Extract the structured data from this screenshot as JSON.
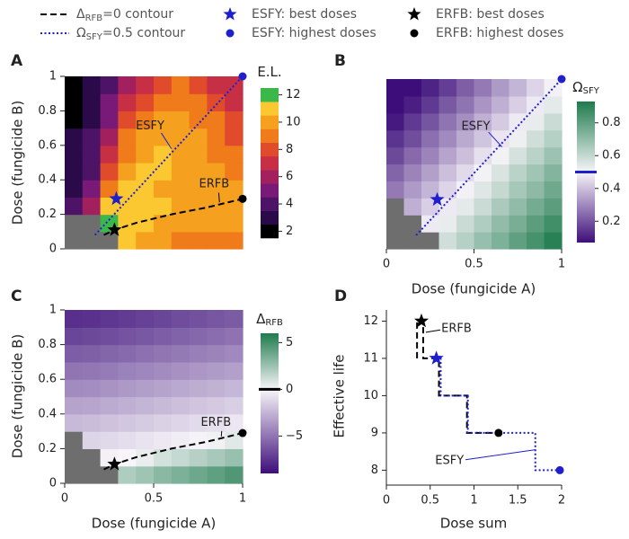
{
  "legend": [
    {
      "label": "Δ",
      "sub": "RFB",
      "label_end": "=0 contour",
      "symbol": "dashed",
      "color": "#000000"
    },
    {
      "label": "ESFY: best doses",
      "symbol": "star",
      "color": "#1f1fcc"
    },
    {
      "label": "ERFB: best doses",
      "symbol": "star",
      "color": "#000000"
    },
    {
      "label": "Ω",
      "sub": "SFY",
      "label_end": "=0.5 contour",
      "symbol": "dotted",
      "color": "#1f1fcc"
    },
    {
      "label": "ESFY: highest doses",
      "symbol": "dot",
      "color": "#1f1fcc"
    },
    {
      "label": "ERFB: highest doses",
      "symbol": "dot",
      "color": "#000000"
    }
  ],
  "chart_data": [
    {
      "type": "heatmap",
      "panel": "A",
      "ylabel": "Dose (fungicide B)",
      "x": [
        0.05,
        0.15,
        0.25,
        0.35,
        0.45,
        0.55,
        0.65,
        0.75,
        0.85,
        0.95
      ],
      "y": [
        0.05,
        0.15,
        0.25,
        0.35,
        0.45,
        0.55,
        0.65,
        0.75,
        0.85,
        0.95
      ],
      "z": [
        [
          null,
          null,
          null,
          11,
          10,
          10,
          9,
          9,
          9,
          9
        ],
        [
          null,
          null,
          12,
          11,
          11,
          10,
          10,
          10,
          10,
          10
        ],
        [
          4,
          6,
          11,
          11,
          11,
          11,
          10,
          10,
          10,
          10
        ],
        [
          3,
          5,
          9,
          11,
          11,
          10,
          10,
          10,
          10,
          10
        ],
        [
          3,
          4,
          8,
          10,
          11,
          11,
          10,
          10,
          10,
          9
        ],
        [
          3,
          4,
          7,
          9,
          10,
          11,
          10,
          10,
          9,
          9
        ],
        [
          3,
          4,
          6,
          9,
          10,
          10,
          10,
          10,
          9,
          8
        ],
        [
          2,
          3,
          5,
          8,
          9,
          10,
          10,
          9,
          9,
          8
        ],
        [
          2,
          3,
          5,
          7,
          8,
          9,
          9,
          9,
          8,
          7
        ],
        [
          2,
          3,
          4,
          6,
          7,
          8,
          9,
          8,
          7,
          7
        ]
      ],
      "missing_color": "#6e6e6e",
      "xlim": [
        0,
        1
      ],
      "ylim": [
        0,
        1
      ],
      "yticks": [
        0,
        0.2,
        0.4,
        0.6,
        0.8,
        1
      ],
      "colorbar": {
        "label": "E.L.",
        "mode": "discrete",
        "zlim": [
          1.5,
          12.5
        ],
        "ticks": [
          2,
          4,
          6,
          8,
          10,
          12
        ],
        "colors": [
          "#000000",
          "#2b0a4a",
          "#4c1366",
          "#7a1a78",
          "#a3205f",
          "#c72f45",
          "#e04b2c",
          "#f07b1a",
          "#f5a01e",
          "#fbc832",
          "#3cb84a"
        ]
      },
      "lines": [
        {
          "style": "dotted",
          "color": "#1f1fcc",
          "x": [
            0.17,
            1
          ],
          "y": [
            0.08,
            1
          ]
        },
        {
          "style": "dashed",
          "color": "#000000",
          "x": [
            0.22,
            0.28,
            0.4,
            0.6,
            0.8,
            1
          ],
          "y": [
            0.08,
            0.11,
            0.15,
            0.2,
            0.24,
            0.29
          ]
        }
      ],
      "markers": [
        {
          "shape": "star",
          "color": "#1f1fcc",
          "x": 0.29,
          "y": 0.29
        },
        {
          "shape": "star",
          "color": "#000000",
          "x": 0.28,
          "y": 0.11
        },
        {
          "shape": "dot",
          "color": "#1f1fcc",
          "x": 1,
          "y": 1
        },
        {
          "shape": "dot",
          "color": "#000000",
          "x": 1,
          "y": 0.29
        }
      ],
      "annotations": [
        {
          "text": "ESFY",
          "color": "#1f1fcc"
        },
        {
          "text": "ERFB",
          "color": "#000000"
        }
      ]
    },
    {
      "type": "heatmap",
      "panel": "B",
      "xlabel": "Dose (fungicide A)",
      "x": [
        0.05,
        0.15,
        0.25,
        0.35,
        0.45,
        0.55,
        0.65,
        0.75,
        0.85,
        0.95
      ],
      "y": [
        0.05,
        0.15,
        0.25,
        0.35,
        0.45,
        0.55,
        0.65,
        0.75,
        0.85,
        0.95
      ],
      "z": [
        [
          null,
          null,
          null,
          0.58,
          0.63,
          0.69,
          0.74,
          0.8,
          0.85,
          0.91
        ],
        [
          null,
          null,
          0.48,
          0.53,
          0.59,
          0.64,
          0.7,
          0.75,
          0.81,
          0.86
        ],
        [
          null,
          0.37,
          0.43,
          0.48,
          0.54,
          0.59,
          0.65,
          0.7,
          0.76,
          0.81
        ],
        [
          0.27,
          0.33,
          0.38,
          0.44,
          0.49,
          0.55,
          0.6,
          0.66,
          0.71,
          0.77
        ],
        [
          0.23,
          0.29,
          0.34,
          0.4,
          0.45,
          0.51,
          0.56,
          0.62,
          0.67,
          0.73
        ],
        [
          0.18,
          0.24,
          0.29,
          0.35,
          0.4,
          0.46,
          0.51,
          0.57,
          0.62,
          0.68
        ],
        [
          0.14,
          0.19,
          0.25,
          0.3,
          0.36,
          0.41,
          0.47,
          0.52,
          0.58,
          0.63
        ],
        [
          0.09,
          0.15,
          0.2,
          0.26,
          0.31,
          0.37,
          0.42,
          0.48,
          0.53,
          0.59
        ],
        [
          0.07,
          0.1,
          0.15,
          0.21,
          0.26,
          0.32,
          0.37,
          0.43,
          0.48,
          0.54
        ],
        [
          0.07,
          0.07,
          0.11,
          0.16,
          0.22,
          0.27,
          0.33,
          0.38,
          0.44,
          0.49
        ]
      ],
      "missing_color": "#6e6e6e",
      "xlim": [
        0,
        1
      ],
      "ylim": [
        0,
        1
      ],
      "xticks": [
        0,
        0.5,
        1
      ],
      "colorbar": {
        "label": "Ω",
        "label_sub": "SFY",
        "mode": "diverging",
        "zlim": [
          0.07,
          0.93
        ],
        "ticks": [
          0.2,
          0.4,
          0.6,
          0.8
        ],
        "colors": [
          "#3d0e7a",
          "#f7f5f9",
          "#1e7b4d"
        ],
        "threshold": 0.5,
        "threshold_color": "#1f1fcc"
      },
      "lines": [
        {
          "style": "dotted",
          "color": "#1f1fcc",
          "x": [
            0.17,
            1
          ],
          "y": [
            0.08,
            1
          ]
        }
      ],
      "markers": [
        {
          "shape": "star",
          "color": "#1f1fcc",
          "x": 0.29,
          "y": 0.29
        },
        {
          "shape": "dot",
          "color": "#1f1fcc",
          "x": 1,
          "y": 1
        }
      ],
      "annotations": [
        {
          "text": "ESFY",
          "color": "#1f1fcc"
        }
      ]
    },
    {
      "type": "heatmap",
      "panel": "C",
      "xlabel": "Dose (fungicide A)",
      "ylabel": "Dose (fungicide B)",
      "x": [
        0.05,
        0.15,
        0.25,
        0.35,
        0.45,
        0.55,
        0.65,
        0.75,
        0.85,
        0.95
      ],
      "y": [
        0.05,
        0.15,
        0.25,
        0.35,
        0.45,
        0.55,
        0.65,
        0.75,
        0.85,
        0.95
      ],
      "z": [
        [
          null,
          null,
          null,
          2.0,
          2.4,
          3.0,
          3.4,
          3.8,
          4.2,
          4.6
        ],
        [
          null,
          null,
          -0.2,
          0,
          0.4,
          1.0,
          1.4,
          1.8,
          2.2,
          2.6
        ],
        [
          null,
          -1.3,
          -1.1,
          -0.9,
          -0.7,
          -0.5,
          -0.3,
          -0.1,
          0.2,
          0.6
        ],
        [
          -2.3,
          -2.2,
          -2.0,
          -1.8,
          -1.6,
          -1.4,
          -1.2,
          -1.0,
          -0.8,
          -0.6
        ],
        [
          -3.2,
          -3.1,
          -2.9,
          -2.7,
          -2.5,
          -2.3,
          -2.1,
          -1.9,
          -1.7,
          -1.5
        ],
        [
          -4.1,
          -4.0,
          -3.8,
          -3.6,
          -3.4,
          -3.2,
          -3.0,
          -2.8,
          -2.6,
          -2.4
        ],
        [
          -5.0,
          -4.9,
          -4.7,
          -4.5,
          -4.3,
          -4.1,
          -3.9,
          -3.7,
          -3.5,
          -3.3
        ],
        [
          -5.9,
          -5.8,
          -5.6,
          -5.4,
          -5.2,
          -5.0,
          -4.8,
          -4.6,
          -4.4,
          -4.2
        ],
        [
          -6.8,
          -6.7,
          -6.5,
          -6.3,
          -6.1,
          -5.9,
          -5.7,
          -5.5,
          -5.3,
          -5.1
        ],
        [
          -7.7,
          -7.6,
          -7.4,
          -7.2,
          -7.0,
          -6.8,
          -6.6,
          -6.4,
          -6.2,
          -6.0
        ]
      ],
      "missing_color": "#6e6e6e",
      "xlim": [
        0,
        1
      ],
      "ylim": [
        0,
        1
      ],
      "xticks": [
        0,
        0.5,
        1
      ],
      "yticks": [
        0,
        0.2,
        0.4,
        0.6,
        0.8,
        1
      ],
      "colorbar": {
        "label": "Δ",
        "label_sub": "RFB",
        "mode": "diverging",
        "zlim": [
          -9,
          6
        ],
        "ticks": [
          5,
          0,
          {
            "value": -5,
            "label": "−5"
          }
        ],
        "colors": [
          "#3d0e7a",
          "#f7f5f9",
          "#1e7b4d"
        ],
        "threshold": 0,
        "threshold_color": "#000000"
      },
      "lines": [
        {
          "style": "dashed",
          "color": "#000000",
          "x": [
            0.22,
            0.28,
            0.4,
            0.6,
            0.8,
            1
          ],
          "y": [
            0.08,
            0.11,
            0.15,
            0.2,
            0.24,
            0.29
          ]
        }
      ],
      "markers": [
        {
          "shape": "star",
          "color": "#000000",
          "x": 0.28,
          "y": 0.11
        },
        {
          "shape": "dot",
          "color": "#000000",
          "x": 1,
          "y": 0.29
        }
      ],
      "annotations": [
        {
          "text": "ERFB",
          "color": "#000000"
        }
      ]
    },
    {
      "type": "line",
      "panel": "D",
      "xlabel": "Dose sum",
      "ylabel": "Effective life",
      "xlim": [
        0,
        2
      ],
      "ylim": [
        7.6,
        12.3
      ],
      "xticks": [
        0,
        0.5,
        1,
        1.5,
        2
      ],
      "yticks": [
        8,
        9,
        10,
        11,
        12
      ],
      "lines": [
        {
          "style": "dashed",
          "color": "#000000",
          "x": [
            0.35,
            0.35,
            0.42,
            0.42,
            0.6,
            0.6,
            0.92,
            0.92,
            1.28
          ],
          "y": [
            11,
            12,
            12,
            11,
            11,
            10,
            10,
            9,
            9
          ]
        },
        {
          "style": "dotted",
          "color": "#1f1fcc",
          "x": [
            0.57,
            0.62,
            0.62,
            0.93,
            0.93,
            1.7,
            1.7,
            1.98
          ],
          "y": [
            11,
            11,
            10,
            10,
            9,
            9,
            8,
            8
          ]
        }
      ],
      "markers": [
        {
          "shape": "star",
          "color": "#000000",
          "x": 0.4,
          "y": 12
        },
        {
          "shape": "star",
          "color": "#1f1fcc",
          "x": 0.57,
          "y": 11
        },
        {
          "shape": "dot",
          "color": "#000000",
          "x": 1.28,
          "y": 9
        },
        {
          "shape": "dot",
          "color": "#1f1fcc",
          "x": 1.98,
          "y": 8
        }
      ],
      "annotations": [
        {
          "text": "ERFB",
          "color": "#000000"
        },
        {
          "text": "ESFY",
          "color": "#1f1fcc"
        }
      ]
    }
  ]
}
